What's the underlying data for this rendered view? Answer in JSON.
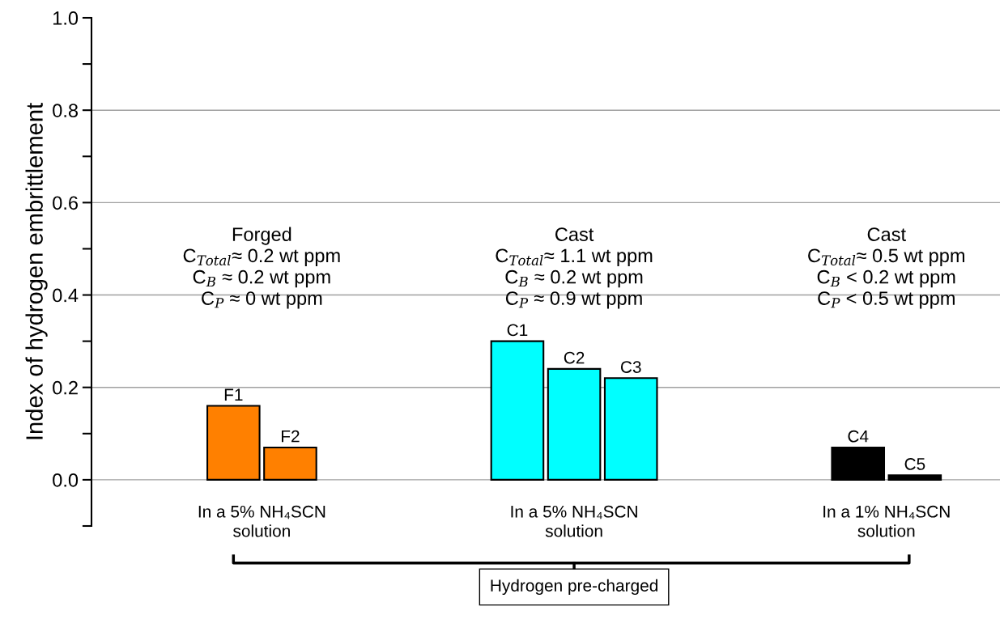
{
  "chart_data": {
    "type": "bar",
    "ylabel": "Index of hydrogen embrittlement",
    "categories": [
      null,
      null,
      null,
      null,
      null,
      null,
      null,
      null,
      null,
      null,
      null,
      null,
      null,
      null,
      null,
      null
    ],
    "series": [
      {
        "name": "F1",
        "color": "#ff8000",
        "values": [
          null,
          null,
          0.16,
          null,
          null,
          null,
          null,
          null,
          null,
          null,
          null,
          null,
          null,
          null,
          null,
          null
        ]
      },
      {
        "name": "F2",
        "color": "#ff8000",
        "values": [
          null,
          null,
          null,
          0.07,
          null,
          null,
          null,
          null,
          null,
          null,
          null,
          null,
          null,
          null,
          null,
          null
        ]
      },
      {
        "name": "C1",
        "color": "#00ffff",
        "values": [
          null,
          null,
          null,
          null,
          null,
          null,
          null,
          0.3,
          null,
          null,
          null,
          null,
          null,
          null,
          null,
          null
        ]
      },
      {
        "name": "C2",
        "color": "#00ffff",
        "values": [
          null,
          null,
          null,
          null,
          null,
          null,
          null,
          null,
          0.24,
          null,
          null,
          null,
          null,
          null,
          null,
          null
        ]
      },
      {
        "name": "C3",
        "color": "#00ffff",
        "values": [
          null,
          null,
          null,
          null,
          null,
          null,
          null,
          null,
          null,
          0.22,
          null,
          null,
          null,
          null,
          null,
          null
        ]
      },
      {
        "name": "C4",
        "color": "#000000",
        "values": [
          null,
          null,
          null,
          null,
          null,
          null,
          null,
          null,
          null,
          null,
          null,
          null,
          null,
          0.07,
          null,
          null
        ]
      },
      {
        "name": "C5",
        "color": "#000000",
        "values": [
          null,
          null,
          null,
          null,
          null,
          null,
          null,
          null,
          null,
          null,
          null,
          null,
          null,
          null,
          0.01,
          null
        ]
      }
    ],
    "ylim": [
      -0.1,
      1.0
    ],
    "yticks": [
      {
        "value": -0.1,
        "label": null
      },
      {
        "value": 0,
        "label": "0.0"
      },
      {
        "value": 0.1,
        "label": null
      },
      {
        "value": 0.2,
        "label": "0.2"
      },
      {
        "value": 0.3,
        "label": null
      },
      {
        "value": 0.4,
        "label": "0.4"
      },
      {
        "value": 0.5,
        "label": null
      },
      {
        "value": 0.6,
        "label": "0.6"
      },
      {
        "value": 0.7,
        "label": null
      },
      {
        "value": 0.8,
        "label": "0.8"
      },
      {
        "value": 0.9,
        "label": null
      },
      {
        "value": 1,
        "label": "1.0"
      }
    ],
    "grid": "y",
    "tick_labels": "y",
    "annotations": [
      "Forged\nC$_{Total}$≈ 0.2 wt ppm\nC$_{B}$ ≈ 0.2 wt ppm\nC$_{P}$ ≈ 0 wt ppm",
      "Cast\nC$_{Total}$≈ 1.1 wt ppm\nC$_{B}$ ≈ 0.2 wt ppm\nC$_{P}$ ≈ 0.9 wt ppm",
      "Cast\nC$_{Total}$≈ 0.5 wt ppm\nC$_{B}$ < 0.2 wt ppm\nC$_{P}$ < 0.5 wt ppm",
      "In a 5% NH₄SCN\nsolution",
      "In a 5% NH₄SCN\nsolution",
      "In a 1% NH₄SCN\nsolution",
      "Hydrogen pre-charged"
    ]
  }
}
